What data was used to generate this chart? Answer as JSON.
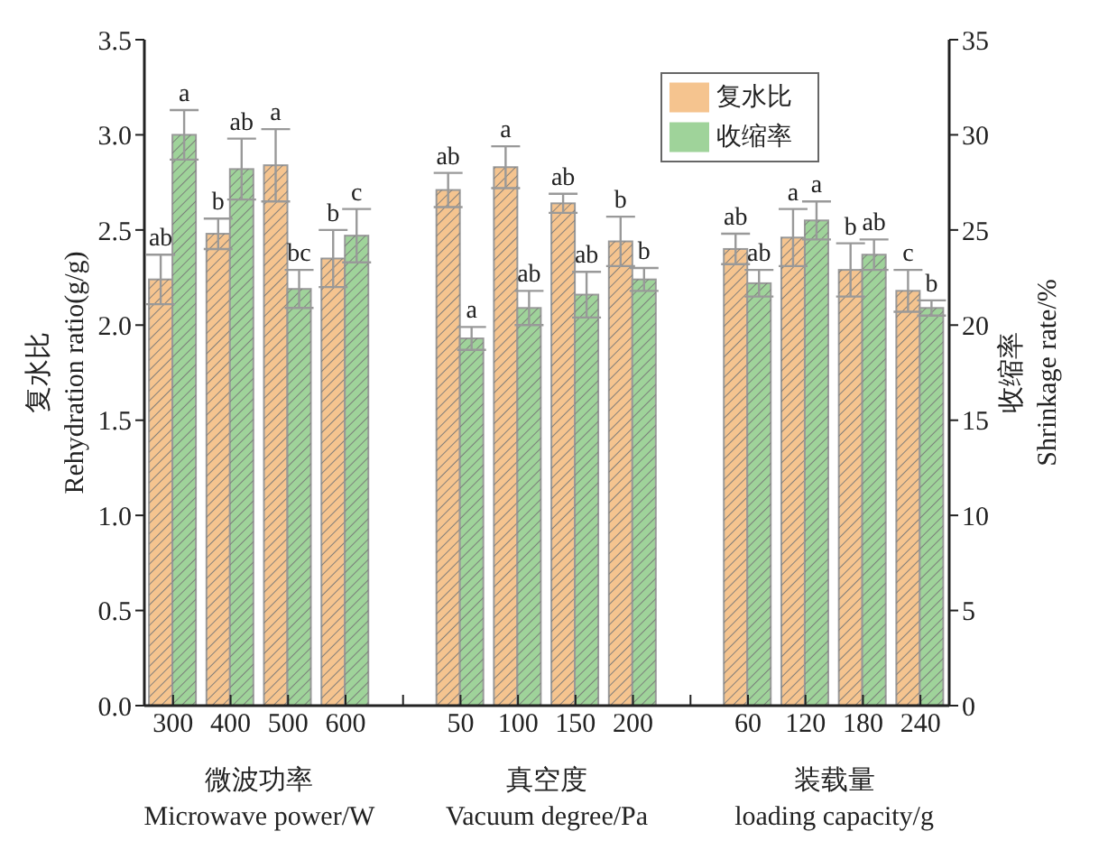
{
  "chart_data": {
    "type": "bar",
    "ylabel": "复水比\nRehydration ratio(g/g)",
    "y2label": "收缩率\nShrinkage rate/%",
    "categories": [
      "300",
      "400",
      "500",
      "600",
      null,
      "50",
      "100",
      "150",
      "200",
      null,
      "60",
      "120",
      "180",
      "240"
    ],
    "series": [
      {
        "name": "复水比",
        "color": "#f5c48f",
        "values": [
          2.24,
          2.48,
          2.84,
          2.35,
          null,
          2.71,
          2.83,
          2.64,
          2.44,
          null,
          2.4,
          2.46,
          2.29,
          2.18
        ],
        "errors": [
          0.13,
          0.08,
          0.19,
          0.15,
          null,
          0.09,
          0.11,
          0.05,
          0.13,
          null,
          0.08,
          0.15,
          0.14,
          0.11
        ],
        "value_labels": [
          "ab",
          "b",
          "a",
          "b",
          null,
          "ab",
          "a",
          "ab",
          "b",
          null,
          "ab",
          "a",
          "b",
          "c"
        ]
      },
      {
        "name": "收缩率",
        "color": "#9fd39a",
        "axis": "y2",
        "values": [
          30.0,
          28.2,
          21.9,
          24.7,
          null,
          19.3,
          20.9,
          21.6,
          22.4,
          null,
          22.2,
          25.5,
          23.7,
          20.9
        ],
        "errors": [
          1.3,
          1.6,
          1.0,
          1.4,
          null,
          0.6,
          0.9,
          1.2,
          0.6,
          null,
          0.7,
          1.0,
          0.8,
          0.4
        ],
        "value_labels": [
          "a",
          "ab",
          "bc",
          "c",
          null,
          "a",
          "ab",
          "ab",
          "b",
          null,
          "ab",
          "a",
          "ab",
          "b"
        ]
      }
    ],
    "ylim": [
      0,
      3.5
    ],
    "yticks": [
      {
        "value": 0,
        "label": "0.0"
      },
      0.5,
      {
        "value": 1,
        "label": "1.0"
      },
      1.5,
      {
        "value": 2,
        "label": "2.0"
      },
      2.5,
      {
        "value": 3,
        "label": "3.0"
      },
      3.5
    ],
    "y2lim": [
      0,
      35
    ],
    "y2ticks": [
      0,
      5,
      10,
      15,
      20,
      25,
      30,
      35
    ],
    "annotations": [
      "微波功率\nMicrowave power/W",
      "真空度\nVacuum degree/Pa",
      "装载量\nloading capacity/g"
    ],
    "legend": "top right"
  }
}
